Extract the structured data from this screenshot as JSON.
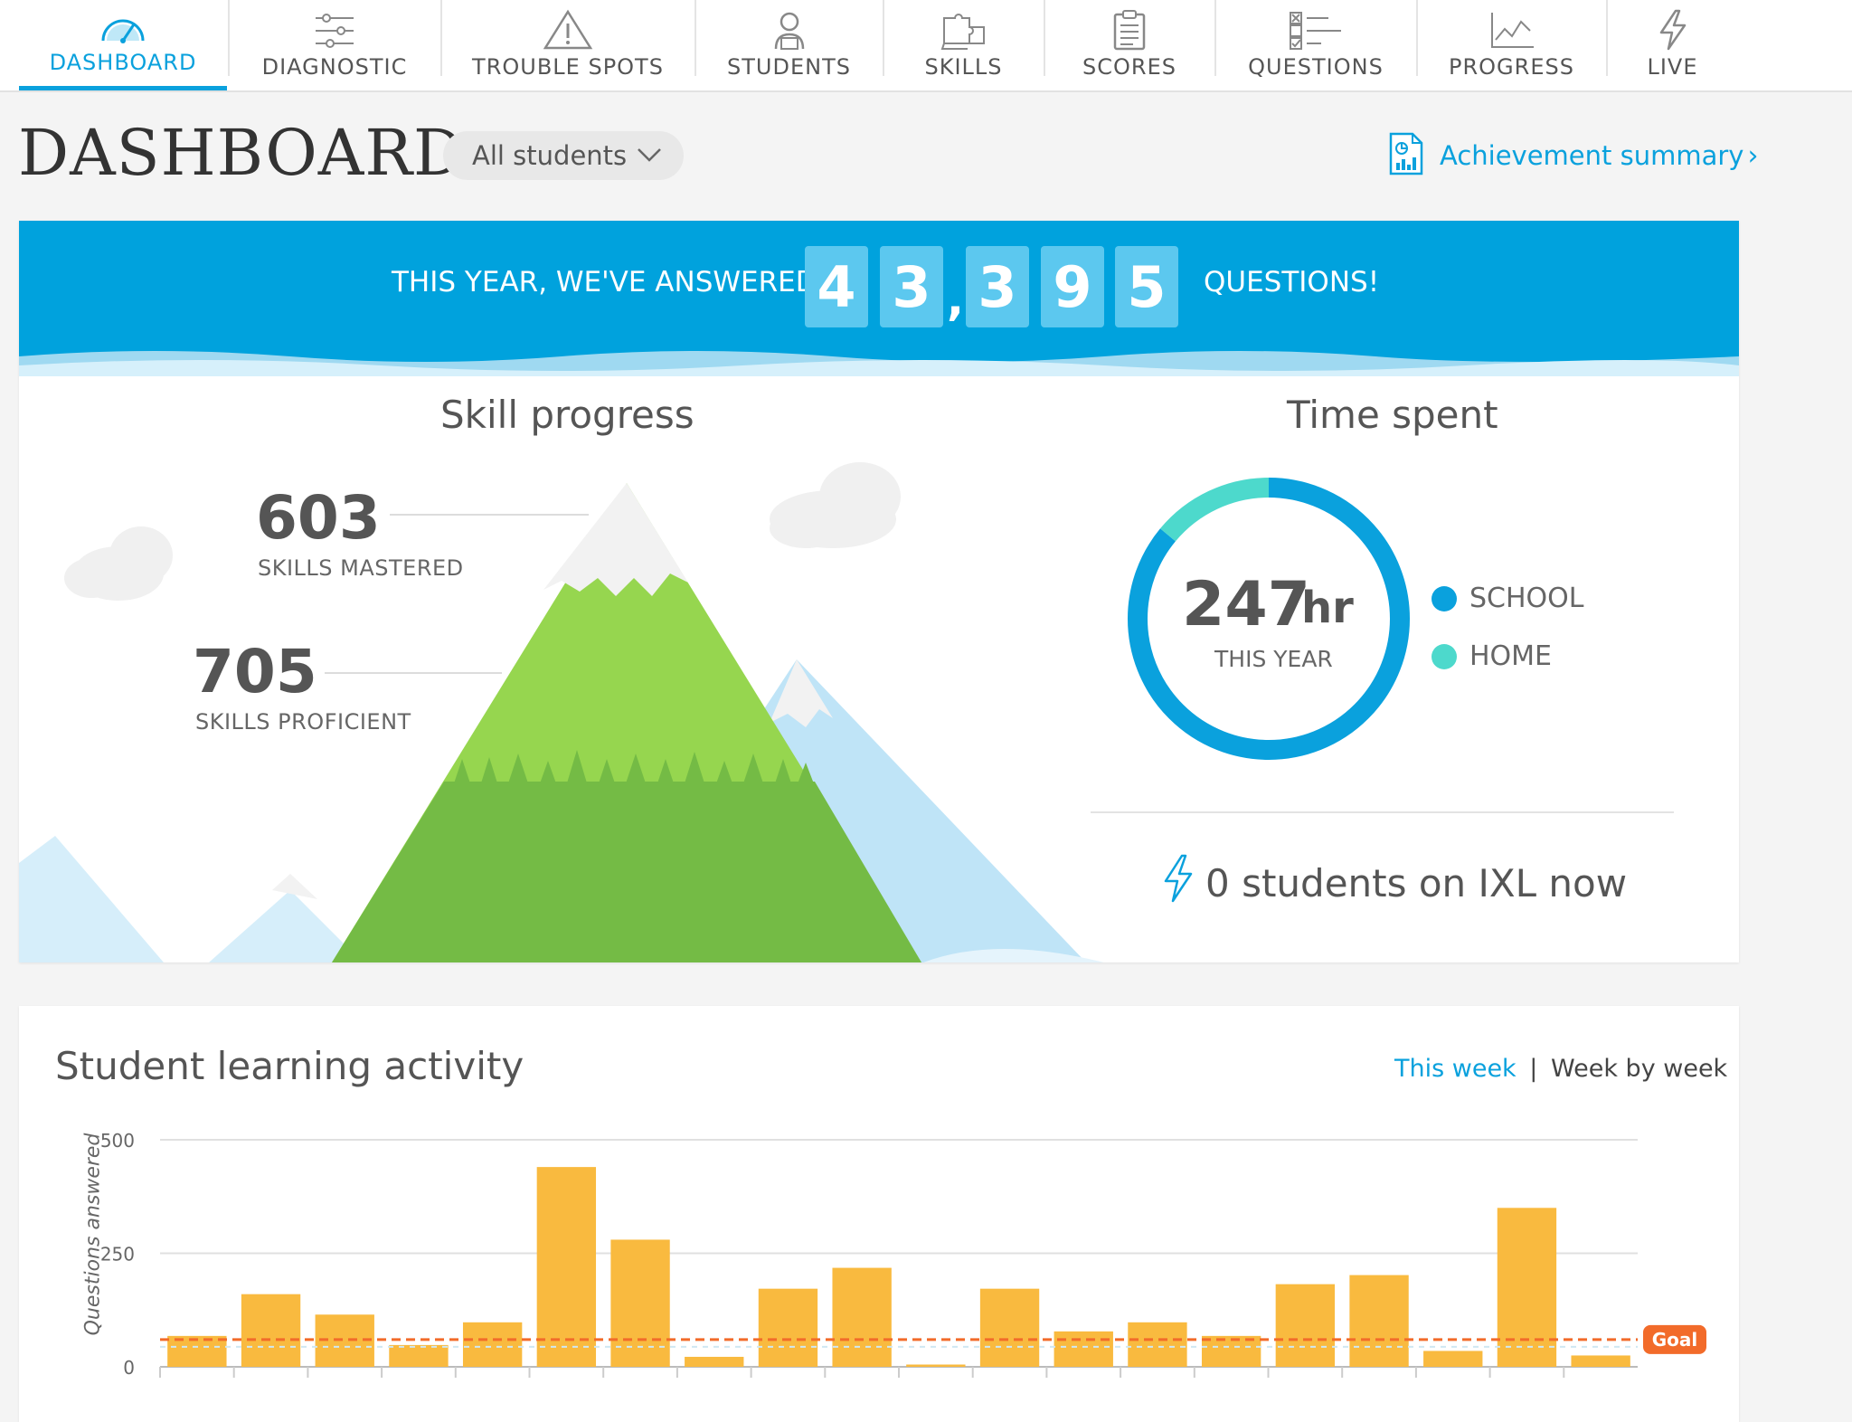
{
  "nav": {
    "items": [
      {
        "label": "DASHBOARD",
        "icon": "speedometer-icon"
      },
      {
        "label": "DIAGNOSTIC",
        "icon": "sliders-icon"
      },
      {
        "label": "TROUBLE SPOTS",
        "icon": "warning-icon"
      },
      {
        "label": "STUDENTS",
        "icon": "student-icon"
      },
      {
        "label": "SKILLS",
        "icon": "puzzle-icon"
      },
      {
        "label": "SCORES",
        "icon": "clipboard-icon"
      },
      {
        "label": "QUESTIONS",
        "icon": "checklist-icon"
      },
      {
        "label": "PROGRESS",
        "icon": "line-chart-icon"
      },
      {
        "label": "LIVE",
        "icon": "lightning-icon"
      }
    ],
    "active": "DASHBOARD"
  },
  "header": {
    "title": "DASHBOARD",
    "student_filter": "All students",
    "achievement_link": "Achievement summary",
    "achievement_arrow": "›"
  },
  "banner": {
    "prefix": "THIS YEAR, WE'VE ANSWERED",
    "digits": [
      "4",
      "3",
      "3",
      "9",
      "5"
    ],
    "comma": ",",
    "suffix": "QUESTIONS!"
  },
  "skill_progress": {
    "title": "Skill progress",
    "mastered_value": "603",
    "mastered_label": "SKILLS MASTERED",
    "proficient_value": "705",
    "proficient_label": "SKILLS PROFICIENT"
  },
  "time_spent": {
    "title": "Time spent",
    "value": "247",
    "unit": "hr",
    "caption": "THIS YEAR",
    "school_fraction": 0.86,
    "home_fraction": 0.14,
    "legend": [
      {
        "label": "SCHOOL",
        "color": "#0aa1dd"
      },
      {
        "label": "HOME",
        "color": "#4dd9cc"
      }
    ]
  },
  "live": {
    "text": "0 students on IXL now"
  },
  "activity": {
    "title": "Student learning activity",
    "this_week": "This week",
    "separator": "|",
    "week_by_week": "Week by week",
    "goal_label": "Goal"
  },
  "colors": {
    "accent": "#0aa1dd",
    "bar": "#f9ba3f",
    "goal": "#f26b2a",
    "banner": "#00a2dd"
  },
  "chart_data": {
    "type": "bar",
    "ylabel": "Questions answered",
    "ylim": [
      0,
      500
    ],
    "yticks": [
      0,
      250,
      500
    ],
    "values": [
      68,
      160,
      115,
      48,
      98,
      440,
      280,
      22,
      172,
      218,
      5,
      172,
      78,
      98,
      68,
      182,
      202,
      35,
      350,
      25
    ],
    "goal": 60,
    "grid": true
  }
}
